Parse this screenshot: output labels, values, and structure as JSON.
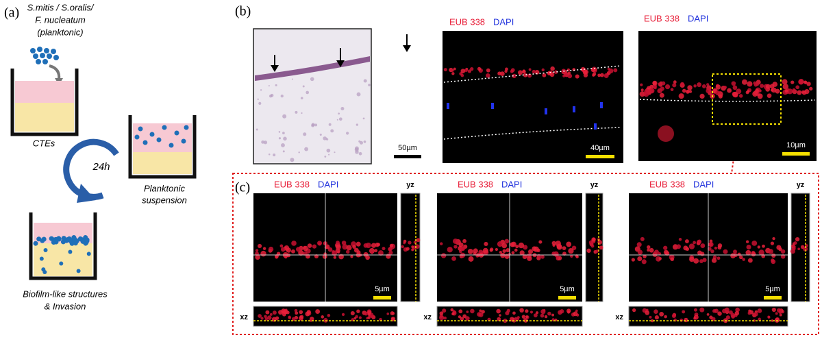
{
  "panel_a": {
    "label": "(a)",
    "organisms": [
      "S.mitis / S.oralis/",
      "F. nucleatum",
      "(planktonic)"
    ],
    "ctes_label": "CTEs",
    "time_label": "24h",
    "planktonic_label": [
      "Planktonic",
      "suspension"
    ],
    "biofilm_label": [
      "Biofilm-like structures",
      "& Invasion"
    ]
  },
  "panel_b": {
    "label": "(b)",
    "images": [
      {
        "scale_bar": "50µm"
      },
      {
        "stain_labels": [
          "EUB 338",
          "DAPI"
        ],
        "scale_bar": "40µm"
      },
      {
        "stain_labels": [
          "EUB 338",
          "DAPI"
        ],
        "scale_bar": "10µm"
      }
    ]
  },
  "panel_c": {
    "label": "(c)",
    "images": [
      {
        "stain_labels": [
          "EUB 338",
          "DAPI"
        ],
        "yz_label": "yz",
        "xz_label": "xz",
        "scale_bar": "5µm"
      },
      {
        "stain_labels": [
          "EUB 338",
          "DAPI"
        ],
        "yz_label": "yz",
        "xz_label": "xz",
        "scale_bar": "5µm"
      },
      {
        "stain_labels": [
          "EUB 338",
          "DAPI"
        ],
        "yz_label": "yz",
        "xz_label": "xz",
        "scale_bar": "5µm"
      }
    ]
  }
}
